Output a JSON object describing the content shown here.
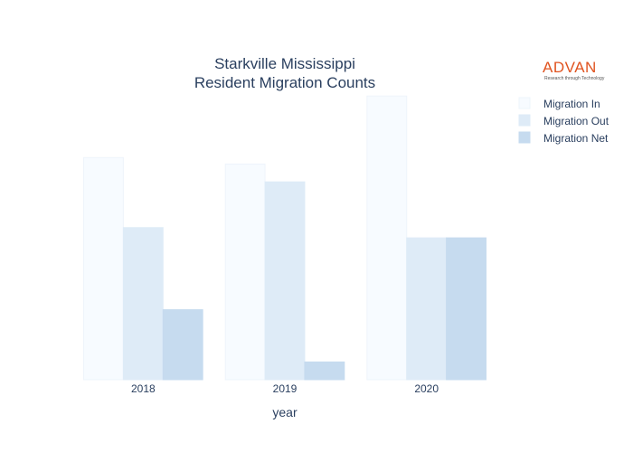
{
  "logo": {
    "word": "ADVAN",
    "tagline": "Research through Technology",
    "color": "#e0531f"
  },
  "chart_data": {
    "type": "bar",
    "title": [
      "Starkville Mississippi",
      "Resident Migration Counts"
    ],
    "xlabel": "year",
    "ylabel": "",
    "categories": [
      "2018",
      "2019",
      "2020"
    ],
    "ylim": [
      0,
      310
    ],
    "grid": false,
    "legend_position": "top-right",
    "series": [
      {
        "name": "Migration In",
        "values": [
          238,
          231,
          304
        ],
        "color": "#f7fbff",
        "stroke": "#eef4fb"
      },
      {
        "name": "Migration Out",
        "values": [
          163,
          212,
          152
        ],
        "color": "#deebf7",
        "stroke": "#deebf7"
      },
      {
        "name": "Migration Net",
        "values": [
          75,
          19,
          152
        ],
        "color": "#c6dbef",
        "stroke": "#c6dbef"
      }
    ]
  }
}
